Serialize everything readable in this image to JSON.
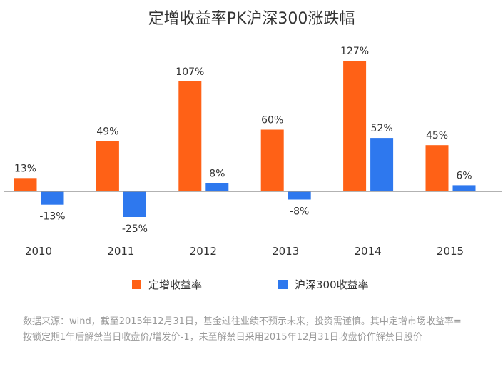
{
  "chart_data": {
    "type": "bar",
    "title": "定增收益率PK沪深300涨跌幅",
    "xlabel": "",
    "ylabel": "",
    "categories": [
      "2010",
      "2011",
      "2012",
      "2013",
      "2014",
      "2015"
    ],
    "series": [
      {
        "name": "定增收益率",
        "color": "#FF6116",
        "values": [
          13,
          49,
          107,
          60,
          127,
          45
        ],
        "labels": [
          "13%",
          "49%",
          "107%",
          "60%",
          "127%",
          "45%"
        ]
      },
      {
        "name": "沪深300收益率",
        "color": "#2E78EE",
        "values": [
          -13,
          -25,
          8,
          -8,
          52,
          6
        ],
        "labels": [
          "-13%",
          "-25%",
          "8%",
          "-8%",
          "52%",
          "6%"
        ]
      }
    ],
    "ylim": [
      -40,
      140
    ],
    "grid": false,
    "legend": "bottom",
    "axis_color": "#999999"
  },
  "footnote": {
    "line1": "数据来源：wind，截至2015年12月31日，基金过往业绩不预示未来，投资需谨慎。其中定增市场收益率=",
    "line2": "按锁定期1年后解禁当日收盘价/增发价-1，未至解禁日采用2015年12月31日收盘价作解禁日股价"
  }
}
